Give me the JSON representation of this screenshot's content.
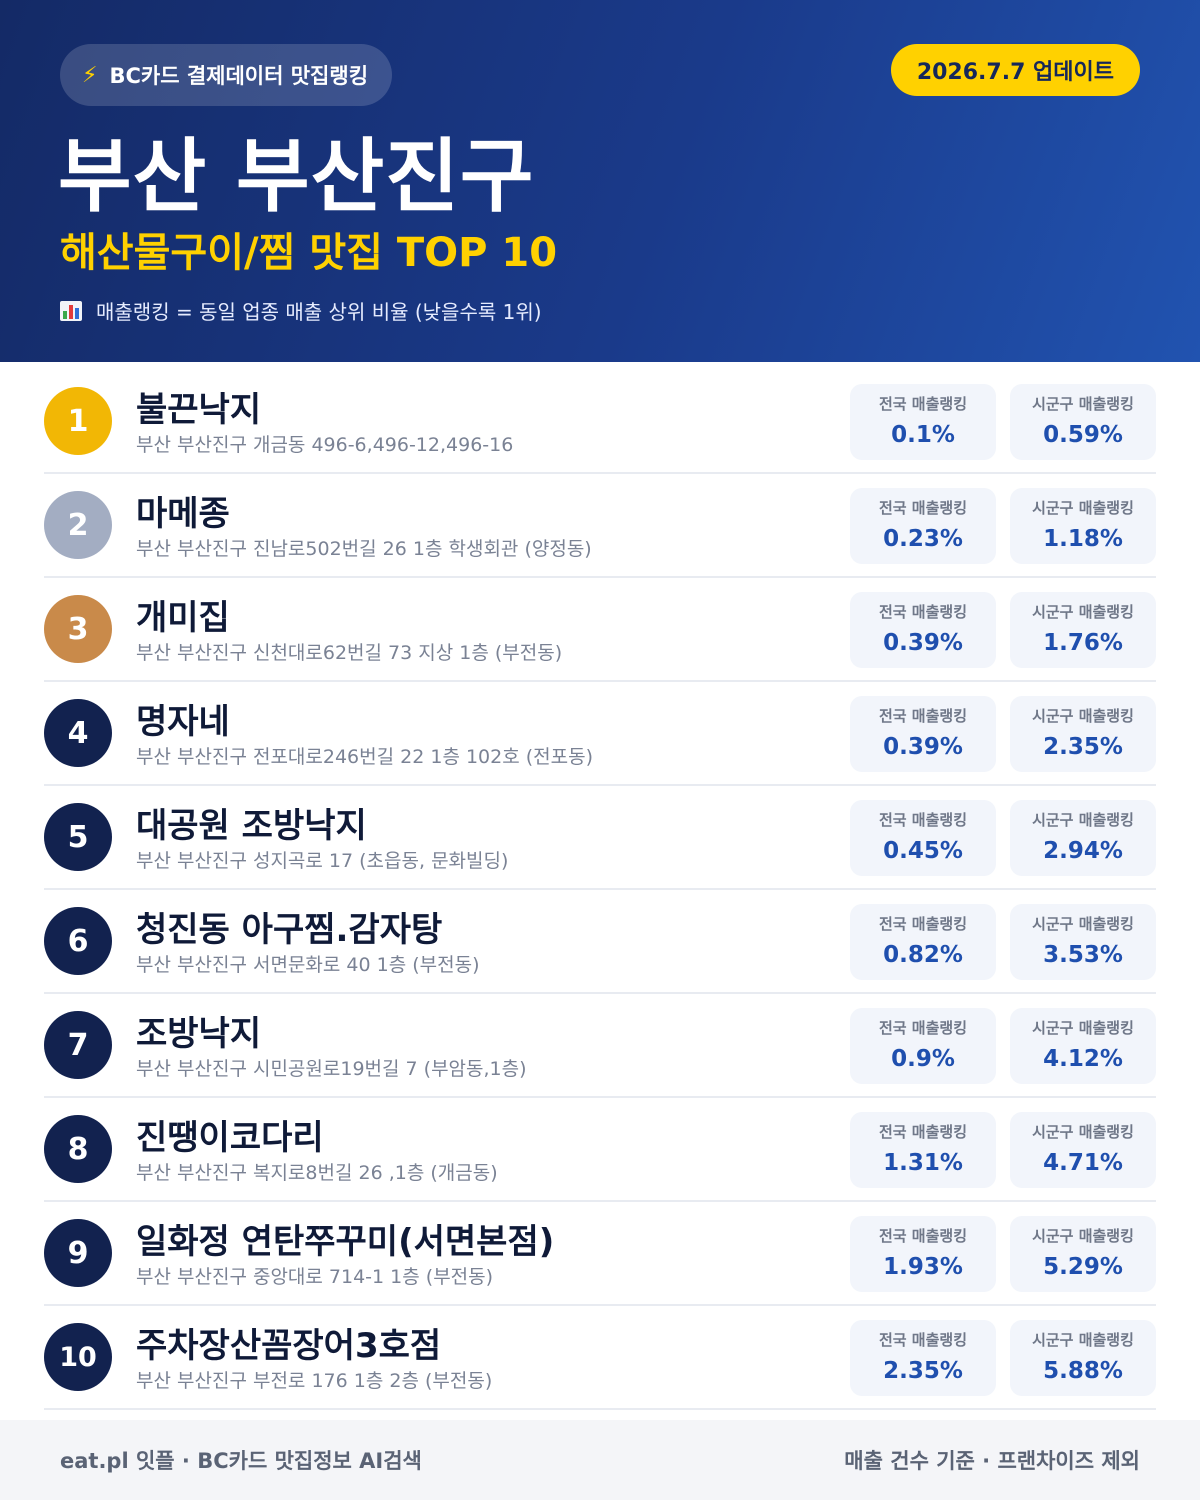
{
  "header": {
    "pill_text": "BC카드 결제데이터 맛집랭킹",
    "bolt_icon": "lightning-icon",
    "update_badge": "2026.7.7 업데이트",
    "title": "부산 부산진구",
    "subtitle": "해산물구이/찜 맛집 TOP 10",
    "legend_icon": "bar-chart-icon",
    "legend_text": "매출랭킹 = 동일 업종 매출 상위 비율 (낮을수록 1위)"
  },
  "colors": {
    "gold": "#f2b705",
    "silver": "#a3adc2",
    "bronze": "#c98a4a",
    "navy": "#12224f",
    "accent_yellow": "#ffd100",
    "value_blue": "#1f4fae"
  },
  "stat_labels": {
    "national": "전국 매출랭킹",
    "local": "시군구 매출랭킹"
  },
  "items": [
    {
      "rank": "1",
      "name": "불끈낙지",
      "address": "부산 부산진구 개금동 496-6,496-12,496-16",
      "national": "0.1%",
      "local": "0.59%"
    },
    {
      "rank": "2",
      "name": "마메종",
      "address": "부산 부산진구 진남로502번길 26 1층 학생회관 (양정동)",
      "national": "0.23%",
      "local": "1.18%"
    },
    {
      "rank": "3",
      "name": "개미집",
      "address": "부산 부산진구 신천대로62번길 73 지상 1층 (부전동)",
      "national": "0.39%",
      "local": "1.76%"
    },
    {
      "rank": "4",
      "name": "명자네",
      "address": "부산 부산진구 전포대로246번길 22 1층 102호 (전포동)",
      "national": "0.39%",
      "local": "2.35%"
    },
    {
      "rank": "5",
      "name": "대공원 조방낙지",
      "address": "부산 부산진구 성지곡로 17 (초읍동, 문화빌딩)",
      "national": "0.45%",
      "local": "2.94%"
    },
    {
      "rank": "6",
      "name": "청진동 아구찜.감자탕",
      "address": "부산 부산진구 서면문화로 40 1층 (부전동)",
      "national": "0.82%",
      "local": "3.53%"
    },
    {
      "rank": "7",
      "name": "조방낙지",
      "address": "부산 부산진구 시민공원로19번길 7 (부암동,1층)",
      "national": "0.9%",
      "local": "4.12%"
    },
    {
      "rank": "8",
      "name": "진땡이코다리",
      "address": "부산 부산진구 복지로8번길 26 ,1층 (개금동)",
      "national": "1.31%",
      "local": "4.71%"
    },
    {
      "rank": "9",
      "name": "일화정 연탄쭈꾸미(서면본점)",
      "address": "부산 부산진구 중앙대로 714-1 1층 (부전동)",
      "national": "1.93%",
      "local": "5.29%"
    },
    {
      "rank": "10",
      "name": "주차장산꼼장어3호점",
      "address": "부산 부산진구 부전로 176 1층 2층 (부전동)",
      "national": "2.35%",
      "local": "5.88%"
    }
  ],
  "footer": {
    "left": "eat.pl 잇플 · BC카드 맛집정보 AI검색",
    "right": "매출 건수 기준 · 프랜차이즈 제외"
  }
}
